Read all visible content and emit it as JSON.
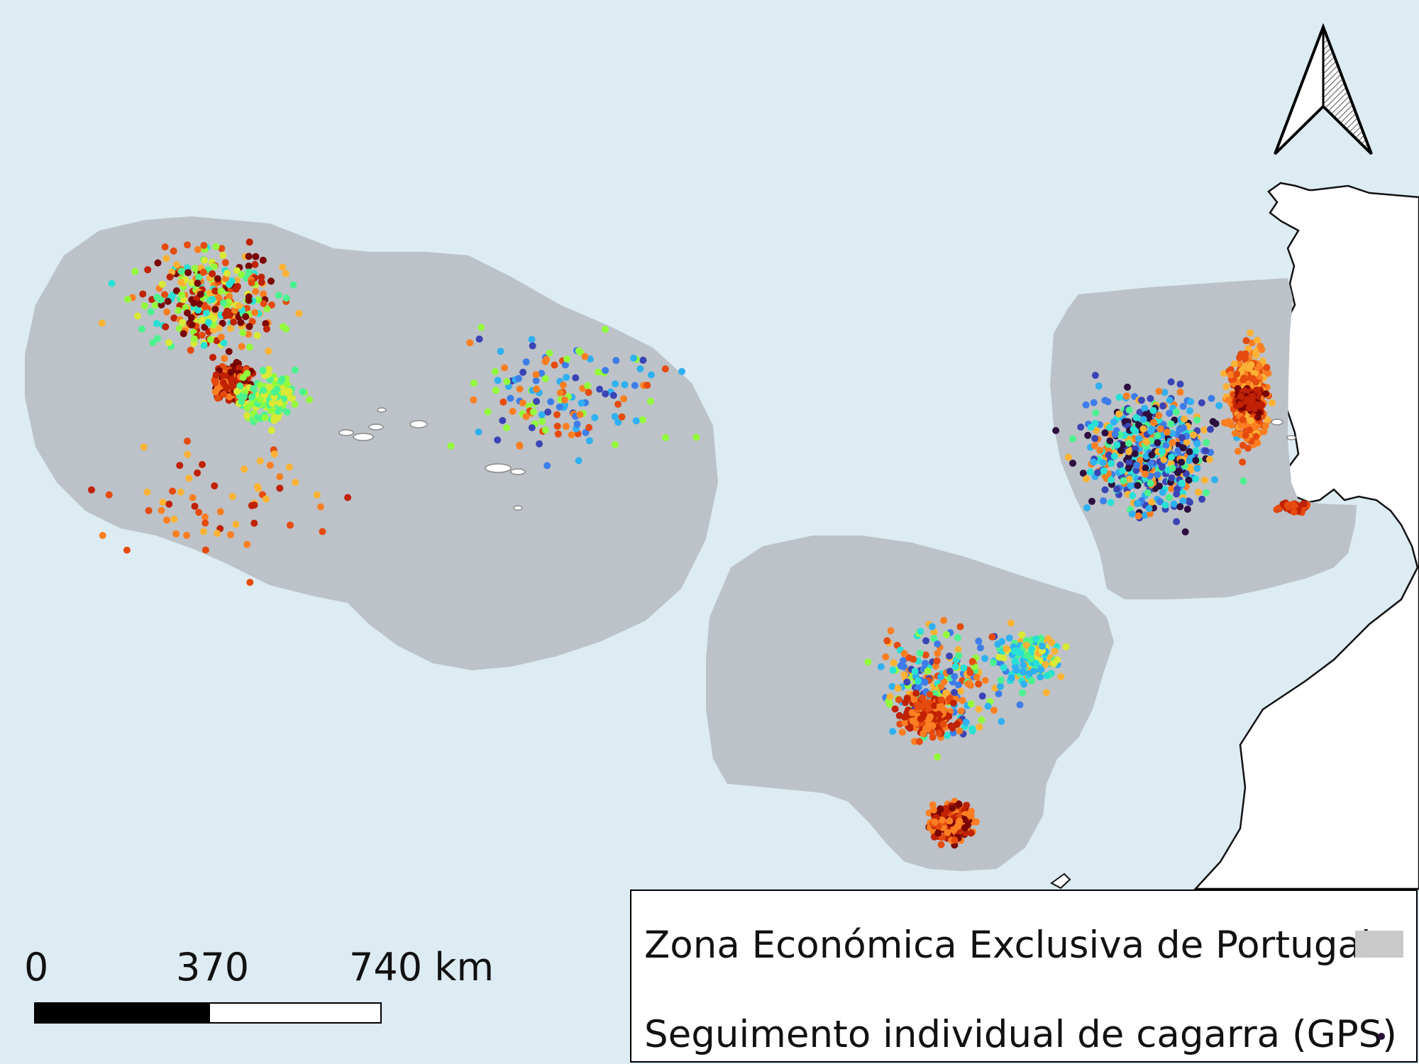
{
  "map": {
    "background_color": "#ddebf3",
    "eez_color": "#bcc2c7",
    "land_color": "#ffffff",
    "island_color": "#ffffff",
    "regions": [
      "azores",
      "madeira",
      "mainland"
    ]
  },
  "legend": {
    "eez_label": "Zona Económica Exclusiva de Portugal",
    "gps_label": "Seguimento individual de cagarra (GPS)",
    "eez_swatch_color": "#c9c9c9",
    "gps_swatch_color": "#2a0f3b"
  },
  "scale_bar": {
    "tick_0": "0",
    "tick_1": "370",
    "tick_2": "740 km"
  },
  "north_arrow": {
    "icon": "north-arrow-icon"
  },
  "gps_colors": [
    "#2c0f3f",
    "#3b44b5",
    "#3e7de9",
    "#2fb0f0",
    "#29e0d5",
    "#4cf28f",
    "#93fb3c",
    "#d9e935",
    "#fcb234",
    "#fb7f22",
    "#e54b0e",
    "#c02203",
    "#7a0403"
  ]
}
